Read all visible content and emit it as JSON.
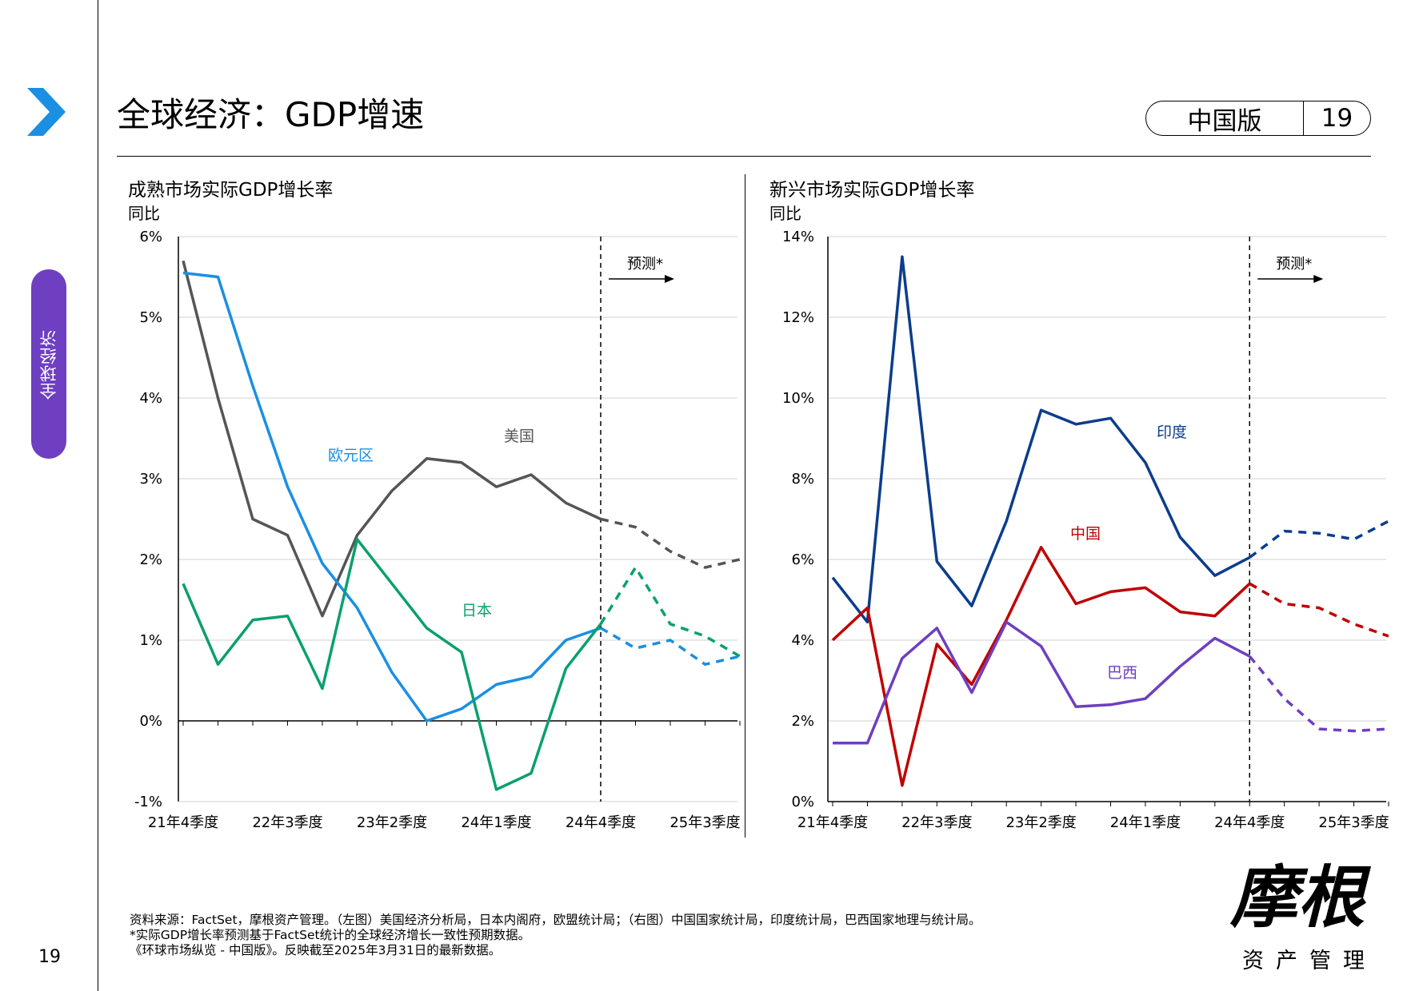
{
  "header": {
    "title": "全球经济：GDP增速",
    "edition": "中国版",
    "page_number": "19"
  },
  "sidebar": {
    "section_label": "全球经济",
    "page_number": "19"
  },
  "colors": {
    "accent": "#1a8fe3",
    "section_pill": "#6e3fc0"
  },
  "chart_data": [
    {
      "type": "line",
      "title": "成熟市场实际GDP增长率",
      "ylabel": "同比",
      "ylim": [
        -1,
        6
      ],
      "y_ticks": [
        "-1%",
        "0%",
        "1%",
        "2%",
        "3%",
        "4%",
        "5%",
        "6%"
      ],
      "x": [
        "21年4季度",
        "22年1季度",
        "22年2季度",
        "22年3季度",
        "22年4季度",
        "23年1季度",
        "23年2季度",
        "23年3季度",
        "23年4季度",
        "24年1季度",
        "24年2季度",
        "24年3季度",
        "24年4季度",
        "25年1季度",
        "25年2季度",
        "25年3季度",
        "25年4季度"
      ],
      "x_tick_labels": [
        "21年4季度",
        "22年3季度",
        "23年2季度",
        "24年1季度",
        "24年4季度",
        "25年3季度"
      ],
      "forecast_start": "24年4季度",
      "forecast_label": "预测*",
      "grid": true,
      "series": [
        {
          "name": "美国",
          "color": "#555555",
          "values": [
            5.7,
            4.0,
            2.5,
            2.3,
            1.3,
            2.3,
            2.85,
            3.25,
            3.2,
            2.9,
            3.05,
            2.7,
            2.5,
            2.4,
            2.1,
            1.9,
            2.0
          ]
        },
        {
          "name": "欧元区",
          "color": "#1a8fe3",
          "values": [
            5.55,
            5.5,
            4.15,
            2.9,
            1.95,
            1.4,
            0.6,
            0.0,
            0.15,
            0.45,
            0.55,
            1.0,
            1.15,
            0.9,
            1.0,
            0.7,
            0.8
          ]
        },
        {
          "name": "日本",
          "color": "#0aa06e",
          "values": [
            1.7,
            0.7,
            1.25,
            1.3,
            0.4,
            2.25,
            1.7,
            1.15,
            0.85,
            -0.85,
            -0.65,
            0.65,
            1.2,
            1.9,
            1.2,
            1.05,
            0.8
          ]
        }
      ]
    },
    {
      "type": "line",
      "title": "新兴市场实际GDP增长率",
      "ylabel": "同比",
      "ylim": [
        0,
        14
      ],
      "y_ticks": [
        "0%",
        "2%",
        "4%",
        "6%",
        "8%",
        "10%",
        "12%",
        "14%"
      ],
      "x": [
        "21年4季度",
        "22年1季度",
        "22年2季度",
        "22年3季度",
        "22年4季度",
        "23年1季度",
        "23年2季度",
        "23年3季度",
        "23年4季度",
        "24年1季度",
        "24年2季度",
        "24年3季度",
        "24年4季度",
        "25年1季度",
        "25年2季度",
        "25年3季度",
        "25年4季度"
      ],
      "x_tick_labels": [
        "21年4季度",
        "22年3季度",
        "23年2季度",
        "24年1季度",
        "24年4季度",
        "25年3季度"
      ],
      "forecast_start": "24年4季度",
      "forecast_label": "预测*",
      "grid": true,
      "series": [
        {
          "name": "印度",
          "color": "#0b3d8c",
          "values": [
            5.55,
            4.45,
            13.5,
            5.95,
            4.85,
            6.95,
            9.7,
            9.35,
            9.5,
            8.4,
            6.55,
            5.6,
            6.05,
            6.7,
            6.65,
            6.5,
            6.95
          ]
        },
        {
          "name": "中国",
          "color": "#c00000",
          "values": [
            4.0,
            4.8,
            0.4,
            3.9,
            2.9,
            4.5,
            6.3,
            4.9,
            5.2,
            5.3,
            4.7,
            4.6,
            5.4,
            4.9,
            4.8,
            4.4,
            4.1
          ]
        },
        {
          "name": "巴西",
          "color": "#6e3fc0",
          "values": [
            1.45,
            1.45,
            3.55,
            4.3,
            2.7,
            4.45,
            3.85,
            2.35,
            2.4,
            2.55,
            3.35,
            4.05,
            3.6,
            2.55,
            1.8,
            1.75,
            1.8
          ]
        }
      ]
    }
  ],
  "footnotes": {
    "line1": "资料来源：FactSet，摩根资产管理。（左图）美国经济分析局，日本内阁府，欧盟统计局；（右图）中国国家统计局，印度统计局，巴西国家地理与统计局。",
    "line2": "*实际GDP增长率预测基于FactSet统计的全球经济增长一致性预期数据。",
    "line3": "《环球市场纵览 - 中国版》。反映截至2025年3月31日的最新数据。"
  },
  "logo": {
    "name": "摩根",
    "subtitle": "资产管理"
  }
}
